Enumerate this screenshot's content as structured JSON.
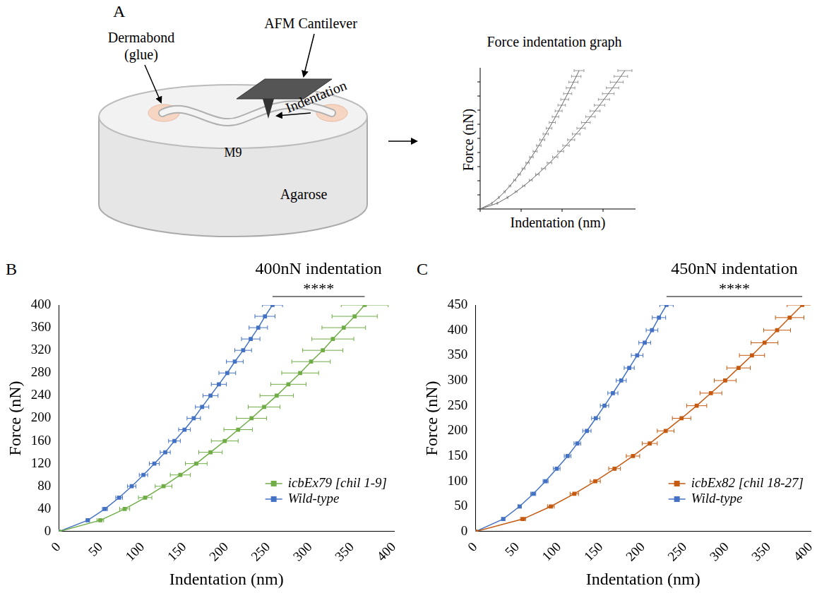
{
  "diagram": {
    "panel_label": "A",
    "labels": {
      "glue": "Dermabond (glue)",
      "cantilever": "AFM Cantilever",
      "indentation": "Indentation",
      "medium": "M9",
      "base": "Agarose"
    },
    "graph": {
      "title": "Force indentation graph",
      "x_label": "Indentation (nm)",
      "y_label": "Force (nN)"
    }
  },
  "chart_data": [
    {
      "type": "line",
      "panel_label": "B",
      "title": "400nN indentation",
      "annotation": "****",
      "x_label": "Indentation (nm)",
      "y_label": "Force (nN)",
      "xlim": [
        0,
        400
      ],
      "xticks": [
        0,
        50,
        100,
        150,
        200,
        250,
        300,
        350,
        400
      ],
      "ylim": [
        0,
        400
      ],
      "yticks": [
        0,
        40,
        80,
        120,
        160,
        200,
        240,
        280,
        320,
        360,
        400
      ],
      "grid": false,
      "legend": "lower right",
      "series": [
        {
          "name": "icbEx79 [chil 1-9]",
          "color": "#70ad47",
          "marker": "square",
          "x": [
            0,
            49.5,
            78.6,
            103,
            125,
            145,
            164,
            181,
            198,
            214,
            230,
            245,
            260,
            274,
            288,
            301,
            315,
            327,
            340,
            353,
            365
          ],
          "values": [
            0,
            20,
            40,
            60,
            80,
            100,
            120,
            140,
            160,
            180,
            200,
            220,
            240,
            260,
            280,
            300,
            320,
            340,
            360,
            380,
            400
          ],
          "x_error": [
            0,
            4,
            6,
            8,
            10,
            12,
            13,
            14,
            16,
            17,
            18,
            19,
            20,
            21,
            22,
            23,
            24,
            25,
            26,
            27,
            28
          ]
        },
        {
          "name": "Wild-type",
          "color": "#4472c4",
          "marker": "square",
          "x": [
            0,
            34.6,
            55,
            72,
            87,
            101,
            114,
            127,
            138,
            150,
            161,
            171,
            181,
            191,
            201,
            210,
            220,
            229,
            238,
            246,
            255
          ],
          "values": [
            0,
            20,
            40,
            60,
            80,
            100,
            120,
            140,
            160,
            180,
            200,
            220,
            240,
            260,
            280,
            300,
            320,
            340,
            360,
            380,
            400
          ],
          "x_error": [
            0,
            2,
            3,
            4,
            5,
            5,
            6,
            6,
            7,
            7,
            8,
            8,
            9,
            9,
            10,
            10,
            10,
            11,
            11,
            12,
            12
          ]
        }
      ]
    },
    {
      "type": "line",
      "panel_label": "C",
      "title": "450nN indentation",
      "annotation": "****",
      "x_label": "Indentation (nm)",
      "y_label": "Force (nN)",
      "xlim": [
        0,
        400
      ],
      "xticks": [
        0,
        50,
        100,
        150,
        200,
        250,
        300,
        350,
        400
      ],
      "ylim": [
        0,
        450
      ],
      "yticks": [
        0,
        50,
        100,
        150,
        200,
        250,
        300,
        350,
        400,
        450
      ],
      "grid": false,
      "legend": "lower right",
      "series": [
        {
          "name": "icbEx82 [chil 18-27]",
          "color": "#c55a11",
          "marker": "square",
          "x": [
            0,
            56.8,
            90,
            118,
            143,
            166,
            188,
            208,
            227,
            246,
            264,
            281,
            298,
            314,
            330,
            345,
            360,
            375,
            390
          ],
          "values": [
            0,
            25,
            50,
            75,
            100,
            125,
            150,
            175,
            200,
            225,
            250,
            275,
            300,
            325,
            350,
            375,
            400,
            425,
            450
          ],
          "x_error": [
            0,
            3,
            4,
            5,
            6,
            7,
            8,
            9,
            10,
            11,
            12,
            13,
            13,
            14,
            15,
            16,
            16,
            17,
            18
          ]
        },
        {
          "name": "Wild-type",
          "color": "#4472c4",
          "marker": "square",
          "x": [
            0,
            33.2,
            52.7,
            69,
            83.7,
            97,
            110,
            121.6,
            133,
            143.6,
            154,
            164,
            174,
            183.5,
            193,
            202,
            210.7,
            219,
            228
          ],
          "values": [
            0,
            25,
            50,
            75,
            100,
            125,
            150,
            175,
            200,
            225,
            250,
            275,
            300,
            325,
            350,
            375,
            400,
            425,
            450
          ],
          "x_error": [
            0,
            2,
            2,
            3,
            3,
            4,
            4,
            4,
            5,
            5,
            5,
            6,
            6,
            6,
            7,
            7,
            7,
            8,
            8
          ]
        }
      ]
    }
  ]
}
